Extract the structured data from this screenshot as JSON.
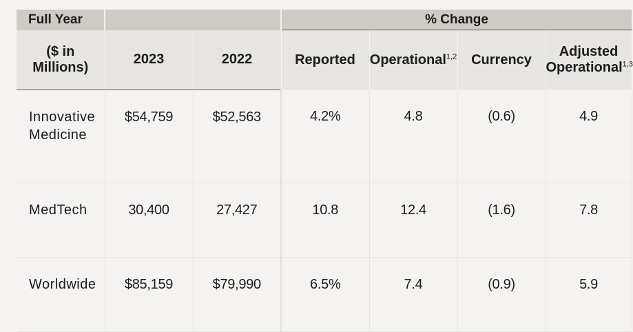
{
  "header": {
    "group_left": "Full Year",
    "group_right": "% Change",
    "columns": {
      "label": "($ in Millions)",
      "y2023": "2023",
      "y2022": "2022",
      "reported": "Reported",
      "operational": "Operational",
      "operational_sup": "1,2",
      "currency": "Currency",
      "adjusted": "Adjusted Operational",
      "adjusted_sup": "1,3"
    }
  },
  "rows": [
    {
      "name": "Innovative Medicine",
      "y2023": "$54,759",
      "y2022": "$52,563",
      "reported": "4.2%",
      "operational": "4.8",
      "currency": "(0.6)",
      "adjusted": "4.9"
    },
    {
      "name": "MedTech",
      "y2023": "30,400",
      "y2022": "27,427",
      "reported": "10.8",
      "operational": "12.4",
      "currency": "(1.6)",
      "adjusted": "7.8"
    },
    {
      "name": "Worldwide",
      "y2023": "$85,159",
      "y2022": "$79,990",
      "reported": "6.5%",
      "operational": "7.4",
      "currency": "(0.9)",
      "adjusted": "5.9"
    }
  ]
}
